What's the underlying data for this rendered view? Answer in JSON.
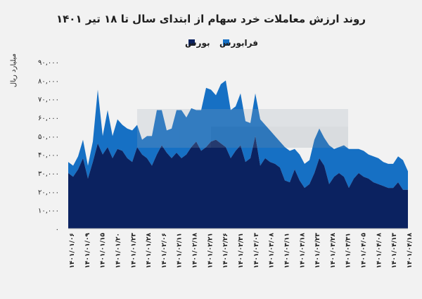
{
  "chart_data": {
    "type": "area",
    "stacked": true,
    "title": "روند ارزش معاملات خرد سهام از ابتدای سال تا ۱۸ تیر ۱۴۰۱",
    "ylabel": "میلیارد ریال",
    "xlabel": "",
    "ylim": [
      0,
      90000
    ],
    "yticks": [
      "۰",
      "۱۰,۰۰۰",
      "۲۰,۰۰۰",
      "۳۰,۰۰۰",
      "۴۰,۰۰۰",
      "۵۰,۰۰۰",
      "۶۰,۰۰۰",
      "۷۰,۰۰۰",
      "۸۰,۰۰۰",
      "۹۰,۰۰۰"
    ],
    "ytick_values": [
      0,
      10000,
      20000,
      30000,
      40000,
      50000,
      60000,
      70000,
      80000,
      90000
    ],
    "grid": false,
    "legend_position": "top",
    "xtick_labels": [
      "۱۴۰۱/۰۱/۰۶",
      "۱۴۰۱/۰۱/۰۹",
      "۱۴۰۱/۰۱/۱۵",
      "۱۴۰۱/۰۱/۲۰",
      "۱۴۰۱/۰۱/۲۳",
      "۱۴۰۱/۰۱/۲۸",
      "۱۴۰۱/۰۲/۰۶",
      "۱۴۰۱/۰۲/۱۱",
      "۱۴۰۱/۰۲/۱۸",
      "۱۴۰۱/۰۲/۲۱",
      "۱۴۰۱/۰۲/۲۶",
      "۱۴۰۱/۰۲/۳۱",
      "۱۴۰۱/۰۳/۰۳",
      "۱۴۰۱/۰۳/۰۸",
      "۱۴۰۱/۰۳/۱۱",
      "۱۴۰۱/۰۳/۱۸",
      "۱۴۰۱/۰۳/۲۳",
      "۱۴۰۱/۰۳/۲۸",
      "۱۴۰۱/۰۳/۳۱",
      "۱۴۰۱/۰۴/۰۵",
      "۱۴۰۱/۰۴/۰۸",
      "۱۴۰۱/۰۴/۱۳",
      "۱۴۰۱/۰۴/۱۸"
    ],
    "series": [
      {
        "name": "بورس",
        "color": "#0b2260",
        "values": [
          30000,
          28000,
          32000,
          38000,
          27000,
          36000,
          46000,
          40000,
          44000,
          38000,
          43000,
          42000,
          38000,
          36000,
          44000,
          40000,
          38000,
          34000,
          40000,
          45000,
          41000,
          38000,
          41000,
          38000,
          40000,
          44000,
          47000,
          42000,
          44000,
          47000,
          48000,
          46000,
          44000,
          38000,
          42000,
          45000,
          36000,
          38000,
          50000,
          34000,
          38000,
          36000,
          35000,
          33000,
          26000,
          25000,
          32000,
          26000,
          22000,
          24000,
          30000,
          38000,
          34000,
          24000,
          28000,
          30000,
          28000,
          22000,
          27000,
          30000,
          28000,
          27000,
          25000,
          24000,
          23000,
          22000,
          22000,
          25000,
          21000,
          21000
        ]
      },
      {
        "name": "فرابورس",
        "color": "#1670c4",
        "values": [
          6000,
          6000,
          7000,
          10000,
          7000,
          11000,
          29000,
          10000,
          20000,
          12000,
          16000,
          14000,
          16000,
          17000,
          12000,
          8000,
          12000,
          16000,
          24000,
          19000,
          12000,
          16000,
          23000,
          26000,
          20000,
          21000,
          17000,
          22000,
          32000,
          28000,
          24000,
          32000,
          36000,
          26000,
          24000,
          28000,
          22000,
          19000,
          23000,
          25000,
          18000,
          17000,
          15000,
          14000,
          18000,
          17000,
          11000,
          14000,
          13000,
          13000,
          18000,
          16000,
          15000,
          21000,
          15000,
          14000,
          17000,
          21000,
          16000,
          13000,
          14000,
          13000,
          14000,
          14000,
          13000,
          13000,
          13000,
          14000,
          16000,
          10000
        ]
      }
    ]
  }
}
